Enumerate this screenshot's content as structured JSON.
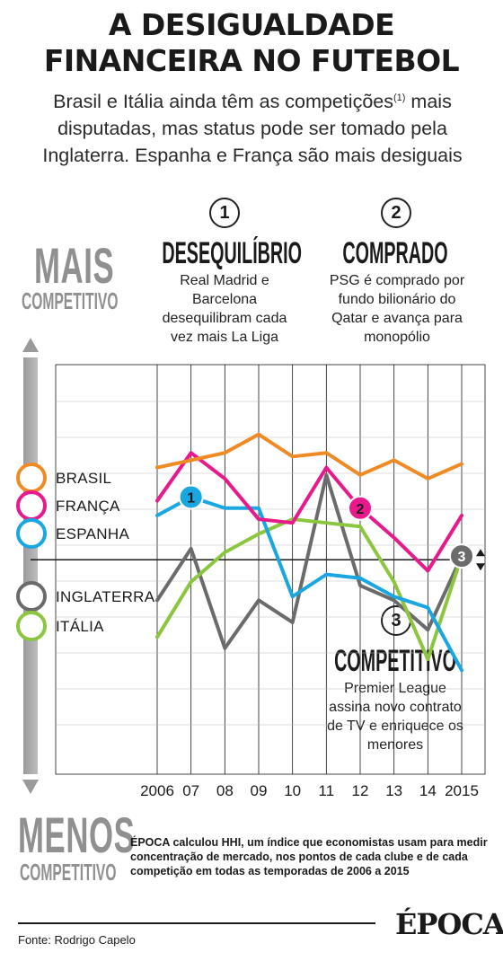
{
  "header": {
    "title_line1": "A DESIGUALDADE",
    "title_line2": "FINANCEIRA NO FUTEBOL",
    "subtitle_before": "Brasil e Itália ainda têm as competições",
    "subtitle_sup": "(1)",
    "subtitle_after": " mais disputadas, mas status pode ser tomado pela Inglaterra. Espanha e França são mais desiguais"
  },
  "scale": {
    "top_big": "MAIS",
    "top_small": "COMPETITIVO",
    "bottom_big": "MENOS",
    "bottom_small": "COMPETITIVO"
  },
  "notes": [
    {
      "number": "1",
      "heading": "DESEQUILÍBRIO",
      "body": "Real Madrid e Barcelona desequilibram cada vez mais La Liga"
    },
    {
      "number": "2",
      "heading": "COMPRADO",
      "body": "PSG é comprado por fundo bilionário do Qatar e avança para monopólio"
    },
    {
      "number": "3",
      "heading": "COMPETITIVO",
      "body": "Premier League assina novo contrato de TV e enriquece os menores"
    }
  ],
  "footnote": "ÉPOCA calculou HHI, um índice que economistas usam para medir concentração de mercado, nos pontos de cada clube e de cada competição em todas as temporadas de 2006 a 2015",
  "source": "Fonte: Rodrigo Capelo",
  "brand": "ÉPOCA",
  "icons": [
    "up-arrow-icon",
    "down-arrow-icon",
    "brasileirao-logo-icon",
    "ligue1-logo-icon",
    "laliga-logo-icon",
    "premier-league-logo-icon",
    "serie-a-logo-icon"
  ],
  "chart_data": {
    "type": "line",
    "title": "",
    "xlabel": "",
    "ylabel": "",
    "categories": [
      "2006",
      "07",
      "08",
      "09",
      "10",
      "11",
      "12",
      "13",
      "14",
      "2015"
    ],
    "ylim": [
      0,
      10
    ],
    "y_direction": "higher = mais competitivo",
    "grid": true,
    "series": [
      {
        "name": "BRASIL",
        "color": "#f08a24",
        "values": [
          7.1,
          7.3,
          7.5,
          8.0,
          7.4,
          7.5,
          6.9,
          7.3,
          6.8,
          7.2
        ]
      },
      {
        "name": "FRANÇA",
        "color": "#e8198b",
        "values": [
          6.2,
          7.5,
          6.8,
          5.7,
          5.6,
          7.1,
          6.0,
          5.2,
          4.3,
          5.8
        ]
      },
      {
        "name": "ESPANHA",
        "color": "#1aa7e1",
        "values": [
          5.8,
          6.3,
          6.0,
          6.0,
          3.6,
          4.2,
          4.1,
          3.6,
          3.3,
          1.6
        ]
      },
      {
        "name": "INGLATERRA",
        "color": "#6b6b6b",
        "values": [
          3.5,
          4.9,
          2.2,
          3.5,
          2.9,
          6.9,
          3.9,
          3.5,
          2.7,
          4.7
        ]
      },
      {
        "name": "ITÁLIA",
        "color": "#8cc63f",
        "values": [
          2.5,
          4.0,
          4.8,
          5.3,
          5.7,
          5.6,
          5.5,
          4.0,
          1.9,
          4.7
        ]
      }
    ],
    "reference_line": 4.6,
    "markers": [
      {
        "label": "1",
        "series": "ESPANHA",
        "x": "07"
      },
      {
        "label": "2",
        "series": "FRANÇA",
        "x": "12"
      },
      {
        "label": "3",
        "series": "INGLATERRA",
        "x": "2015"
      }
    ]
  }
}
